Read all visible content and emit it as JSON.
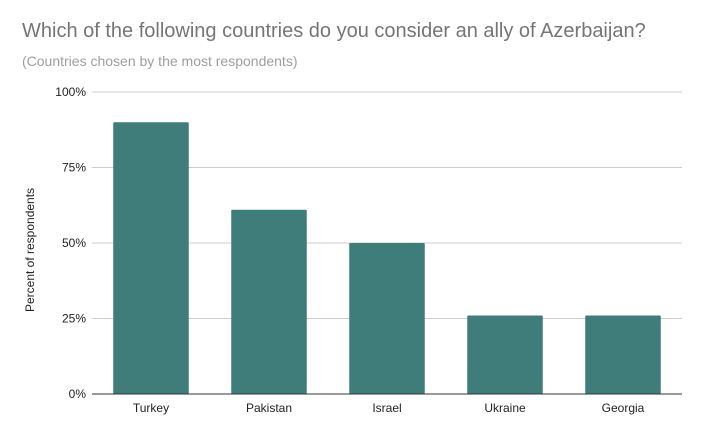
{
  "chart_data": {
    "type": "bar",
    "title": "Which of the following countries do you consider an ally of Azerbaijan?",
    "subtitle": "(Countries chosen by the most respondents)",
    "xlabel": "",
    "ylabel": "Percent of respondents",
    "categories": [
      "Turkey",
      "Pakistan",
      "Israel",
      "Ukraine",
      "Georgia"
    ],
    "values": [
      90,
      61,
      50,
      26,
      26
    ],
    "ylim": [
      0,
      100
    ],
    "yticks": [
      0,
      25,
      50,
      75,
      100
    ],
    "ytick_labels": [
      "0%",
      "25%",
      "50%",
      "75%",
      "100%"
    ],
    "grid": true,
    "legend": "none",
    "bar_color": "#3f7d7b",
    "gridline_color": "#cccccc",
    "axis_color": "#333333"
  }
}
